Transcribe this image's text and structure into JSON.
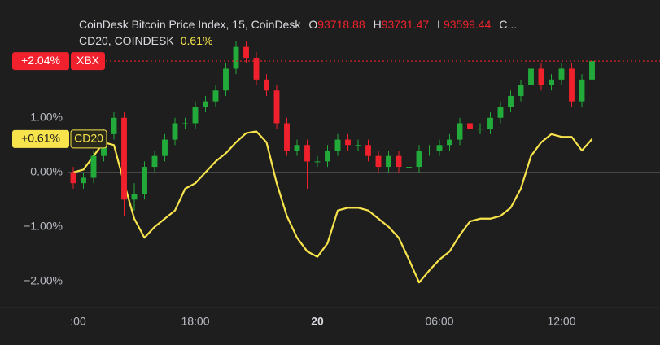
{
  "chart_data": {
    "type": "candlestick",
    "title": "CoinDesk Bitcoin Price Index, 15, CoinDesk",
    "ohlc": [
      {
        "label": "O",
        "value": 93718.88
      },
      {
        "label": "H",
        "value": 93731.47
      },
      {
        "label": "L",
        "value": 93599.44
      }
    ],
    "ohlc_more": "C...",
    "subtitle": "CD20, COINDESK",
    "subtitle_value": "0.61%",
    "x": [
      12,
      12.5,
      13,
      13.5,
      14,
      14.5,
      15,
      15.5,
      16,
      16.5,
      17,
      17.5,
      18,
      18.5,
      19,
      19.5,
      20,
      20.5,
      21,
      21.5,
      22,
      22.5,
      23,
      23.5,
      24,
      24.5,
      25,
      25.5,
      26,
      26.5,
      27,
      27.5,
      28,
      28.5,
      29,
      29.5,
      30,
      30.5,
      31,
      31.5,
      32,
      32.5,
      33,
      33.5,
      34,
      34.5,
      35,
      35.5,
      36,
      36.5,
      37,
      37.5
    ],
    "xlim": [
      8.4,
      40.84
    ],
    "xticks": [
      {
        "value": 12,
        "label": ":00"
      },
      {
        "value": 18,
        "label": "18:00"
      },
      {
        "value": 24,
        "label": "20",
        "bold": true
      },
      {
        "value": 30,
        "label": "06:00"
      },
      {
        "value": 36,
        "label": "12:00"
      }
    ],
    "ylim": [
      -2.48,
      3.16
    ],
    "yticks": [
      {
        "value": 1,
        "label": "1.00%"
      },
      {
        "value": 0,
        "label": "0.00%"
      },
      {
        "value": -1,
        "label": "−1.00%"
      },
      {
        "value": -2,
        "label": "−2.00%"
      }
    ],
    "zero_line": true,
    "candles": {
      "name": "XBX",
      "up_color": "#22ab3b",
      "down_color": "#f0212c",
      "last_label": "+2.04%",
      "open": [
        0,
        -0.2,
        -0.1,
        0.3,
        0.7,
        1.0,
        -0.5,
        -0.4,
        0.1,
        0.3,
        0.6,
        0.9,
        0.9,
        1.2,
        1.3,
        1.5,
        1.9,
        2.3,
        2.1,
        1.7,
        1.5,
        0.9,
        0.4,
        0.5,
        0.2,
        0.2,
        0.4,
        0.6,
        0.5,
        0.5,
        0.3,
        0.1,
        0.3,
        0.1,
        0.1,
        0.4,
        0.4,
        0.5,
        0.6,
        0.9,
        0.8,
        0.8,
        1.0,
        1.2,
        1.4,
        1.6,
        1.9,
        1.6,
        1.7,
        1.9,
        1.3,
        1.7
      ],
      "high": [
        0.1,
        0.0,
        0.4,
        0.8,
        1.1,
        1.1,
        -0.2,
        0.2,
        0.4,
        0.7,
        1.0,
        1.0,
        1.3,
        1.4,
        1.6,
        2.0,
        2.4,
        2.4,
        2.2,
        1.8,
        1.6,
        1.0,
        0.6,
        0.6,
        0.3,
        0.5,
        0.7,
        0.7,
        0.6,
        0.6,
        0.4,
        0.4,
        0.4,
        0.2,
        0.5,
        0.5,
        0.6,
        0.7,
        1.0,
        1.0,
        0.9,
        1.1,
        1.3,
        1.5,
        1.7,
        2.0,
        2.0,
        1.8,
        2.0,
        2.0,
        1.8,
        2.1
      ],
      "low": [
        -0.3,
        -0.3,
        -0.2,
        0.2,
        0.6,
        -0.8,
        -0.7,
        -0.5,
        0.0,
        0.2,
        0.5,
        0.8,
        0.8,
        1.1,
        1.2,
        1.4,
        1.8,
        2.0,
        1.6,
        1.4,
        0.8,
        0.3,
        0.3,
        -0.3,
        0.1,
        0.1,
        0.3,
        0.4,
        0.4,
        0.2,
        0.0,
        0.0,
        0.0,
        -0.1,
        0.0,
        0.3,
        0.3,
        0.4,
        0.5,
        0.7,
        0.7,
        0.7,
        0.9,
        1.1,
        1.3,
        1.5,
        1.5,
        1.5,
        1.6,
        1.2,
        1.2,
        1.6
      ],
      "close": [
        -0.2,
        -0.1,
        0.3,
        0.7,
        1.0,
        -0.5,
        -0.4,
        0.1,
        0.3,
        0.6,
        0.9,
        0.9,
        1.2,
        1.3,
        1.5,
        1.9,
        2.3,
        2.1,
        1.7,
        1.5,
        0.9,
        0.4,
        0.5,
        0.2,
        0.2,
        0.4,
        0.6,
        0.5,
        0.5,
        0.3,
        0.1,
        0.3,
        0.1,
        0.1,
        0.4,
        0.4,
        0.5,
        0.6,
        0.9,
        0.8,
        0.8,
        1.0,
        1.2,
        1.4,
        1.6,
        1.9,
        1.6,
        1.7,
        1.9,
        1.3,
        1.7,
        2.04
      ]
    },
    "line": {
      "name": "CD20",
      "color": "#f7e34b",
      "last_label": "+0.61%",
      "values": [
        0.0,
        0.05,
        0.3,
        0.55,
        0.5,
        -0.2,
        -0.85,
        -1.2,
        -1.0,
        -0.85,
        -0.7,
        -0.3,
        -0.2,
        0.0,
        0.2,
        0.35,
        0.55,
        0.72,
        0.75,
        0.55,
        -0.2,
        -0.8,
        -1.2,
        -1.45,
        -1.55,
        -1.3,
        -0.7,
        -0.65,
        -0.65,
        -0.7,
        -0.85,
        -1.0,
        -1.2,
        -1.6,
        -2.02,
        -1.8,
        -1.6,
        -1.45,
        -1.15,
        -0.9,
        -0.85,
        -0.85,
        -0.8,
        -0.65,
        -0.3,
        0.3,
        0.55,
        0.7,
        0.65,
        0.65,
        0.4,
        0.61
      ]
    }
  }
}
